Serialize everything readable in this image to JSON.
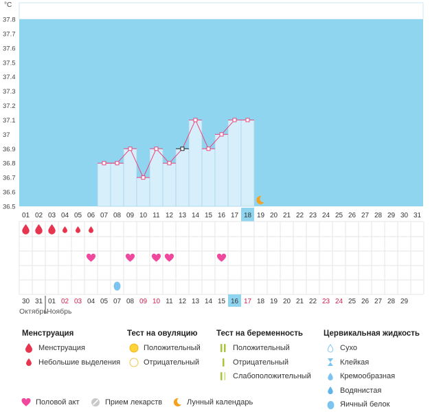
{
  "chart_data": {
    "type": "line",
    "unit_label": "°C",
    "y_ticks": [
      "37.8",
      "37.7",
      "37.6",
      "37.5",
      "37.4",
      "37.3",
      "37.2",
      "37.1",
      "37",
      "36.9",
      "36.8",
      "36.7",
      "36.6",
      "36.5"
    ],
    "ylim": [
      36.5,
      37.8
    ],
    "cycle_days": [
      "01",
      "02",
      "03",
      "04",
      "05",
      "06",
      "07",
      "08",
      "09",
      "10",
      "11",
      "12",
      "13",
      "14",
      "15",
      "16",
      "17",
      "18",
      "19",
      "20",
      "21",
      "22",
      "23",
      "24",
      "25",
      "26",
      "27",
      "28",
      "29",
      "30",
      "31"
    ],
    "current_cycle_day": "18",
    "temperature_series": [
      {
        "day": "07",
        "value": 36.8
      },
      {
        "day": "08",
        "value": 36.8
      },
      {
        "day": "09",
        "value": 36.9
      },
      {
        "day": "10",
        "value": 36.7
      },
      {
        "day": "11",
        "value": 36.9
      },
      {
        "day": "12",
        "value": 36.8
      },
      {
        "day": "13",
        "value": 36.9,
        "marked": true
      },
      {
        "day": "14",
        "value": 37.1
      },
      {
        "day": "15",
        "value": 36.9
      },
      {
        "day": "16",
        "value": 37.0
      },
      {
        "day": "17",
        "value": 37.1
      },
      {
        "day": "18",
        "value": 37.1
      }
    ],
    "moon_day": "19",
    "menstruation_days": [
      {
        "day": "01",
        "type": "heavy"
      },
      {
        "day": "02",
        "type": "heavy"
      },
      {
        "day": "03",
        "type": "heavy"
      },
      {
        "day": "04",
        "type": "light"
      },
      {
        "day": "05",
        "type": "light"
      },
      {
        "day": "06",
        "type": "light"
      }
    ],
    "intercourse_days": [
      "06",
      "09",
      "11",
      "12",
      "16"
    ],
    "fluid_days": [
      {
        "day": "08",
        "type": "egg-white"
      }
    ],
    "calendar_dates": [
      {
        "label": "30",
        "red": false
      },
      {
        "label": "31",
        "red": false
      },
      {
        "label": "01",
        "red": false
      },
      {
        "label": "02",
        "red": true
      },
      {
        "label": "03",
        "red": true
      },
      {
        "label": "04",
        "red": false
      },
      {
        "label": "05",
        "red": false
      },
      {
        "label": "07",
        "red": false
      },
      {
        "label": "08",
        "red": false
      },
      {
        "label": "09",
        "red": true
      },
      {
        "label": "10",
        "red": true
      },
      {
        "label": "11",
        "red": false
      },
      {
        "label": "12",
        "red": false
      },
      {
        "label": "13",
        "red": false
      },
      {
        "label": "14",
        "red": false
      },
      {
        "label": "15",
        "red": false
      },
      {
        "label": "16",
        "red": false,
        "highlight": true
      },
      {
        "label": "17",
        "red": true
      },
      {
        "label": "18",
        "red": false
      },
      {
        "label": "19",
        "red": false
      },
      {
        "label": "20",
        "red": false
      },
      {
        "label": "21",
        "red": false
      },
      {
        "label": "22",
        "red": false
      },
      {
        "label": "23",
        "red": true
      },
      {
        "label": "24",
        "red": true
      },
      {
        "label": "25",
        "red": false
      },
      {
        "label": "26",
        "red": false
      },
      {
        "label": "27",
        "red": false
      },
      {
        "label": "28",
        "red": false
      },
      {
        "label": "29",
        "red": false
      }
    ],
    "month_labels": [
      "Октябрь",
      "Ноябрь"
    ]
  },
  "colors": {
    "plot_bg": "#8fd5ef",
    "bar": "#d6effb",
    "bar_stroke": "#a9d3ec",
    "line": "#e8467c",
    "highlight": "#8fd5ef",
    "grid": "#e5e5e5",
    "red_date": "#d6204e",
    "drop": "#e8354f",
    "heart": "#f0489c",
    "fluid_blue": "#7cc4ef",
    "moon": "#f5a01e"
  },
  "legend": {
    "menstruation": {
      "title": "Менструация",
      "items": [
        "Менструация",
        "Небольшие выделения"
      ]
    },
    "ovulation": {
      "title": "Тест на овуляцию",
      "items": [
        "Положительный",
        "Отрицательный"
      ]
    },
    "pregnancy": {
      "title": "Тест на беременность",
      "items": [
        "Положительный",
        "Отрицательный",
        "Слабоположительный"
      ]
    },
    "fluid": {
      "title": "Цервикальная жидкость",
      "items": [
        "Сухо",
        "Клейкая",
        "Кремообразная",
        "Водянистая",
        "Яичный белок"
      ]
    },
    "bottom": {
      "intercourse": "Половой акт",
      "medication": "Прием лекарств",
      "lunar": "Лунный календарь"
    }
  }
}
